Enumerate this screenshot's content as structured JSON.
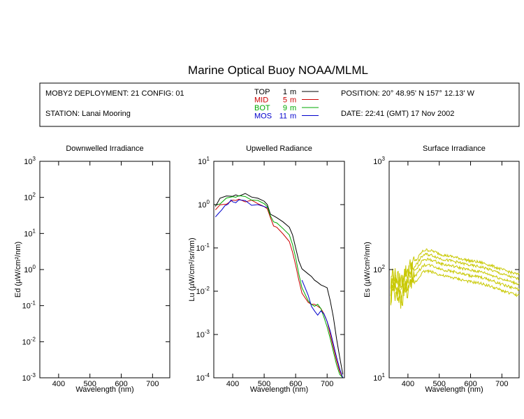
{
  "title": "Marine Optical Buoy NOAA/MLML",
  "info": {
    "deployment": "MOBY2 DEPLOYMENT: 21 CONFIG: 01",
    "station": "STATION: Lanai Mooring",
    "position": "POSITION: 20° 48.95' N   157° 12.13' W",
    "date": "DATE: 22:41 (GMT) 17 Nov 2002"
  },
  "legend": [
    {
      "name": "TOP",
      "depth": "1",
      "unit": "m",
      "color": "#000000"
    },
    {
      "name": "MID",
      "depth": "5",
      "unit": "m",
      "color": "#cc0000"
    },
    {
      "name": "BOT",
      "depth": "9",
      "unit": "m",
      "color": "#00aa00"
    },
    {
      "name": "MOS",
      "depth": "11",
      "unit": "m",
      "color": "#0000cc"
    }
  ],
  "chart_data": [
    {
      "type": "line",
      "title": "Downwelled Irradiance",
      "xlabel": "Wavelength (nm)",
      "ylabel": "Ed (µW/cm²/nm)",
      "xlim": [
        340,
        755
      ],
      "ylim": [
        0.001,
        1000
      ],
      "yscale": "log",
      "xticks": [
        400,
        500,
        600,
        700
      ],
      "yticks": [
        0.001,
        0.01,
        0.1,
        1,
        10,
        100,
        1000
      ],
      "ytick_labels": [
        [
          "10",
          "-3"
        ],
        [
          "10",
          "-2"
        ],
        [
          "10",
          "-1"
        ],
        [
          "10",
          "0"
        ],
        [
          "10",
          "1"
        ],
        [
          "10",
          "2"
        ],
        [
          "10",
          "3"
        ]
      ],
      "series": []
    },
    {
      "type": "line",
      "title": "Upwelled Radiance",
      "xlabel": "Wavelength (nm)",
      "ylabel": "Lu (µW/cm²/sr/nm)",
      "xlim": [
        340,
        755
      ],
      "ylim": [
        0.0001,
        10
      ],
      "yscale": "log",
      "xticks": [
        400,
        500,
        600,
        700
      ],
      "yticks": [
        0.0001,
        0.001,
        0.01,
        0.1,
        1,
        10
      ],
      "ytick_labels": [
        [
          "10",
          "-4"
        ],
        [
          "10",
          "-3"
        ],
        [
          "10",
          "-2"
        ],
        [
          "10",
          "-1"
        ],
        [
          "10",
          "0"
        ],
        [
          "10",
          "1"
        ]
      ],
      "series": [
        {
          "name": "TOP",
          "color": "#000000",
          "x": [
            345,
            360,
            380,
            400,
            410,
            420,
            440,
            460,
            480,
            500,
            510,
            520,
            530,
            540,
            560,
            580,
            590,
            600,
            610,
            620,
            640,
            650,
            660,
            670,
            680,
            690,
            700,
            710,
            720,
            730,
            740,
            750
          ],
          "y": [
            1.0,
            1.3,
            1.5,
            1.75,
            1.8,
            1.75,
            1.7,
            1.6,
            1.4,
            1.2,
            1.0,
            0.6,
            0.55,
            0.5,
            0.4,
            0.3,
            0.2,
            0.1,
            0.05,
            0.033,
            0.025,
            0.022,
            0.018,
            0.016,
            0.014,
            0.013,
            0.012,
            0.006,
            0.0025,
            0.0008,
            0.0003,
            0.00012
          ]
        },
        {
          "name": "MID",
          "color": "#cc0000",
          "x": [
            345,
            360,
            380,
            400,
            410,
            420,
            440,
            460,
            480,
            500,
            510,
            520,
            530,
            540,
            560,
            580,
            590,
            600,
            610,
            620,
            640,
            650,
            660,
            670,
            680,
            690,
            700,
            710,
            720,
            730,
            740,
            750
          ],
          "y": [
            0.75,
            0.95,
            1.1,
            1.3,
            1.35,
            1.3,
            1.25,
            1.2,
            1.05,
            0.9,
            0.8,
            0.5,
            0.32,
            0.3,
            0.21,
            0.14,
            0.08,
            0.04,
            0.018,
            0.009,
            0.0055,
            0.005,
            0.005,
            0.0045,
            0.004,
            0.003,
            0.002,
            0.001,
            0.0005,
            0.00025,
            0.00014,
            0.0001
          ]
        },
        {
          "name": "BOT",
          "color": "#00aa00",
          "x": [
            345,
            360,
            380,
            400,
            410,
            420,
            440,
            460,
            480,
            500,
            510,
            520,
            530,
            540,
            560,
            580,
            590,
            600,
            610,
            620,
            640,
            650,
            660,
            670,
            680,
            690,
            700,
            710,
            720,
            730,
            740,
            750
          ],
          "y": [
            0.9,
            1.1,
            1.35,
            1.6,
            1.65,
            1.6,
            1.55,
            1.45,
            1.25,
            1.05,
            0.9,
            0.55,
            0.4,
            0.38,
            0.28,
            0.2,
            0.12,
            0.06,
            0.025,
            0.012,
            0.006,
            0.005,
            0.0045,
            0.005,
            0.004,
            0.0025,
            0.0015,
            0.0008,
            0.0004,
            0.0002,
            0.00012,
            0.0001
          ]
        },
        {
          "name": "MOS",
          "color": "#0000cc",
          "x": [
            345,
            355,
            365,
            375,
            385,
            395,
            400,
            410,
            420,
            440,
            460,
            480,
            490,
            500,
            510,
            620,
            630,
            640,
            650,
            660,
            670,
            680,
            690,
            700,
            710,
            720,
            730,
            740,
            750
          ],
          "y": [
            0.5,
            0.6,
            0.75,
            0.95,
            1.05,
            1.15,
            1.2,
            1.25,
            1.2,
            1.15,
            1.1,
            1.0,
            0.95,
            0.9,
            0.85,
            0.018,
            0.012,
            0.008,
            0.0045,
            0.0035,
            0.0028,
            0.0035,
            0.003,
            0.002,
            0.0012,
            0.0006,
            0.0003,
            0.00016,
            0.0001
          ]
        }
      ]
    },
    {
      "type": "line",
      "title": "Surface Irradiance",
      "xlabel": "Wavelength (nm)",
      "ylabel": "Es (µW/cm²/nm)",
      "xlim": [
        340,
        755
      ],
      "ylim": [
        10,
        1000
      ],
      "yscale": "log",
      "xticks": [
        400,
        500,
        600,
        700
      ],
      "yticks": [
        10,
        100,
        1000
      ],
      "ytick_labels": [
        [
          "10",
          "1"
        ],
        [
          "10",
          "2"
        ],
        [
          "10",
          "3"
        ]
      ],
      "series": [
        {
          "name": "Es",
          "color": "#c8c800",
          "x": [
            345,
            350,
            360,
            370,
            380,
            390,
            400,
            410,
            420,
            430,
            440,
            450,
            460,
            480,
            500,
            520,
            540,
            560,
            580,
            600,
            620,
            640,
            660,
            680,
            700,
            720,
            740,
            755
          ],
          "y": [
            70,
            95,
            88,
            82,
            80,
            95,
            100,
            112,
            118,
            125,
            140,
            150,
            152,
            148,
            140,
            135,
            132,
            128,
            124,
            120,
            118,
            115,
            110,
            105,
            100,
            96,
            92,
            90
          ]
        }
      ]
    }
  ]
}
